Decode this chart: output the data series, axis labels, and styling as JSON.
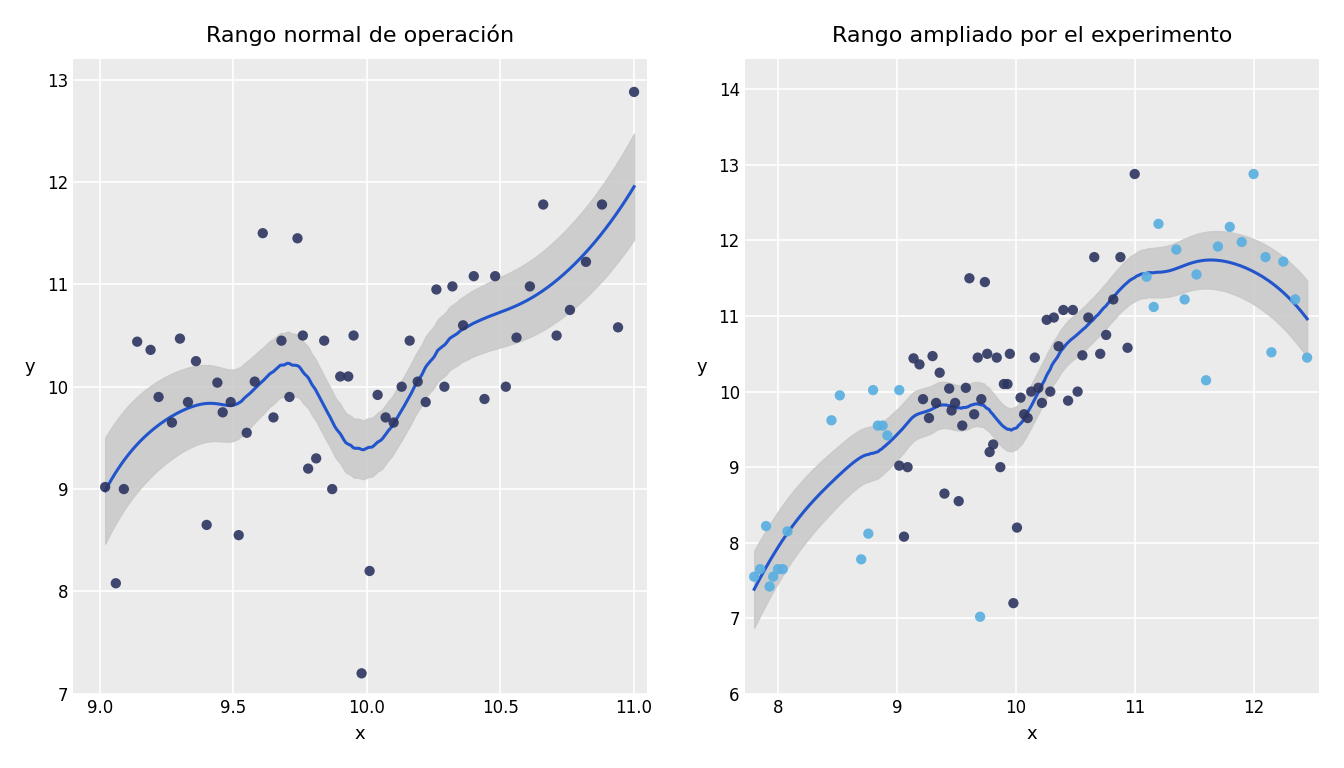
{
  "title1": "Rango normal de operación",
  "title2": "Rango ampliado por el experimento",
  "xlabel": "x",
  "ylabel": "y",
  "bg_color": "#ffffff",
  "panel_bg": "#ffffff",
  "grid_color": "#d0d0d0",
  "curve_color": "#2255cc",
  "ci_color": "#c0c0c0",
  "dot_color_dark": "#2d3561",
  "dot_color_light": "#5aafe0",
  "dot_alpha": 0.9,
  "dot_size": 55,
  "plot1": {
    "xlim": [
      8.9,
      11.05
    ],
    "ylim": [
      7.0,
      13.2
    ],
    "xticks": [
      9.0,
      9.5,
      10.0,
      10.5,
      11.0
    ],
    "yticks": [
      7,
      8,
      9,
      10,
      11,
      12,
      13
    ],
    "x": [
      9.02,
      9.06,
      9.09,
      9.14,
      9.19,
      9.22,
      9.27,
      9.3,
      9.33,
      9.36,
      9.4,
      9.44,
      9.46,
      9.49,
      9.52,
      9.55,
      9.58,
      9.61,
      9.65,
      9.68,
      9.71,
      9.74,
      9.76,
      9.78,
      9.81,
      9.84,
      9.87,
      9.9,
      9.93,
      9.95,
      9.98,
      10.01,
      10.04,
      10.07,
      10.1,
      10.13,
      10.16,
      10.19,
      10.22,
      10.26,
      10.29,
      10.32,
      10.36,
      10.4,
      10.44,
      10.48,
      10.52,
      10.56,
      10.61,
      10.66,
      10.71,
      10.76,
      10.82,
      10.88,
      10.94,
      11.0
    ],
    "y": [
      9.02,
      8.08,
      9.0,
      10.44,
      10.36,
      9.9,
      9.65,
      10.47,
      9.85,
      10.25,
      8.65,
      10.04,
      9.75,
      9.85,
      8.55,
      9.55,
      10.05,
      11.5,
      9.7,
      10.45,
      9.9,
      11.45,
      10.5,
      9.2,
      9.3,
      10.45,
      9.0,
      10.1,
      10.1,
      10.5,
      7.2,
      8.2,
      9.92,
      9.7,
      9.65,
      10.0,
      10.45,
      10.05,
      9.85,
      10.95,
      10.0,
      10.98,
      10.6,
      11.08,
      9.88,
      11.08,
      10.0,
      10.48,
      10.98,
      11.78,
      10.5,
      10.75,
      11.22,
      11.78,
      10.58,
      12.88
    ]
  },
  "plot2": {
    "xlim": [
      7.72,
      12.55
    ],
    "ylim": [
      6.0,
      14.4
    ],
    "xticks": [
      8,
      9,
      10,
      11,
      12
    ],
    "yticks": [
      6,
      7,
      8,
      9,
      10,
      11,
      12,
      13,
      14
    ],
    "x_dark": [
      9.02,
      9.06,
      9.09,
      9.14,
      9.19,
      9.22,
      9.27,
      9.3,
      9.33,
      9.36,
      9.4,
      9.44,
      9.46,
      9.49,
      9.52,
      9.55,
      9.58,
      9.61,
      9.65,
      9.68,
      9.71,
      9.74,
      9.76,
      9.78,
      9.81,
      9.84,
      9.87,
      9.9,
      9.93,
      9.95,
      9.98,
      10.01,
      10.04,
      10.07,
      10.1,
      10.13,
      10.16,
      10.19,
      10.22,
      10.26,
      10.29,
      10.32,
      10.36,
      10.4,
      10.44,
      10.48,
      10.52,
      10.56,
      10.61,
      10.66,
      10.71,
      10.76,
      10.82,
      10.88,
      10.94,
      11.0
    ],
    "y_dark": [
      9.02,
      8.08,
      9.0,
      10.44,
      10.36,
      9.9,
      9.65,
      10.47,
      9.85,
      10.25,
      8.65,
      10.04,
      9.75,
      9.85,
      8.55,
      9.55,
      10.05,
      11.5,
      9.7,
      10.45,
      9.9,
      11.45,
      10.5,
      9.2,
      9.3,
      10.45,
      9.0,
      10.1,
      10.1,
      10.5,
      7.2,
      8.2,
      9.92,
      9.7,
      9.65,
      10.0,
      10.45,
      10.05,
      9.85,
      10.95,
      10.0,
      10.98,
      10.6,
      11.08,
      9.88,
      11.08,
      10.0,
      10.48,
      10.98,
      11.78,
      10.5,
      10.75,
      11.22,
      11.78,
      10.58,
      12.88
    ],
    "x_light": [
      7.8,
      7.85,
      7.9,
      7.93,
      7.96,
      8.0,
      8.04,
      8.08,
      8.45,
      8.52,
      8.7,
      8.76,
      8.8,
      8.84,
      8.88,
      8.92,
      9.02,
      9.7,
      11.1,
      11.16,
      11.2,
      11.35,
      11.42,
      11.52,
      11.6,
      11.7,
      11.8,
      11.9,
      12.0,
      12.1,
      12.15,
      12.25,
      12.35,
      12.45
    ],
    "y_light": [
      7.55,
      7.65,
      8.22,
      7.42,
      7.55,
      7.65,
      7.65,
      8.15,
      9.62,
      9.95,
      7.78,
      8.12,
      10.02,
      9.55,
      9.55,
      9.42,
      10.02,
      7.02,
      11.52,
      11.12,
      12.22,
      11.88,
      11.22,
      11.55,
      10.15,
      11.92,
      12.18,
      11.98,
      12.88,
      11.78,
      10.52,
      11.72,
      11.22,
      10.45
    ]
  }
}
